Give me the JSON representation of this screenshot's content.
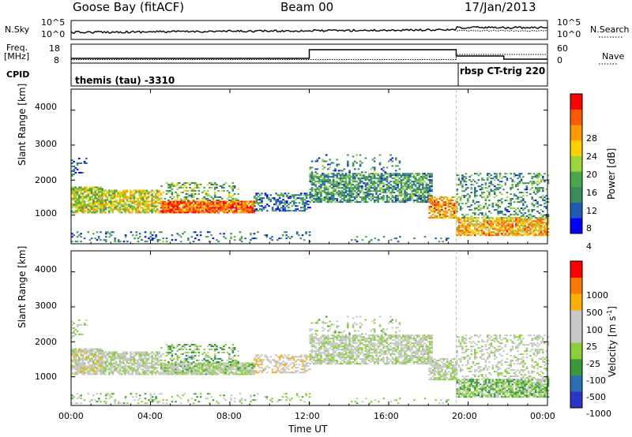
{
  "header": {
    "radar": "Goose Bay (fitACF)",
    "beam": "Beam 00",
    "date": "17/Jan/2013"
  },
  "strips": {
    "nsky": {
      "label": "N.Sky",
      "ticks": [
        "10^5",
        "10^0"
      ]
    },
    "nsearch": {
      "label": "N.Search",
      "ticks": [
        "10^5",
        "10^0"
      ]
    },
    "freq": {
      "label_line1": "Freq.",
      "label_line2": "[MHz]",
      "ticks": [
        "18",
        "8"
      ]
    },
    "nave": {
      "label": "Nave",
      "ticks": [
        "60",
        "0"
      ]
    },
    "cpid": {
      "label": "CPID",
      "segments": [
        "themis (tau) -3310",
        "rbsp CT-trig 220"
      ]
    }
  },
  "colors": {
    "power": [
      "#0000ff",
      "#1e5bb4",
      "#3a8c5c",
      "#4aa84a",
      "#9ad63a",
      "#ffd000",
      "#ff9a00",
      "#ff5a00",
      "#ff0000"
    ],
    "velocity": [
      "#2a36c8",
      "#2a6fb0",
      "#3a9a3a",
      "#8ad03a",
      "#c8c8c8",
      "#c8c8c8",
      "#ffb000",
      "#ff7a00",
      "#ff0000"
    ]
  },
  "chart_data": [
    {
      "type": "heatmap",
      "title": "",
      "ylabel": "Slant Range [km]",
      "xlabel": "",
      "x_ticks": [
        "00:00",
        "04:00",
        "08:00",
        "12:00",
        "16:00",
        "20:00",
        "00:00"
      ],
      "y_ticks": [
        "1000",
        "2000",
        "3000",
        "4000"
      ],
      "ylim": [
        180,
        4600
      ],
      "xlim_hours": [
        0,
        24
      ],
      "colorbar": {
        "label": "Power [dB]",
        "ticks": [
          "28",
          "24",
          "20",
          "16",
          "12",
          "8",
          "4"
        ]
      },
      "cpid_change_hour": 19.4
    },
    {
      "type": "heatmap",
      "title": "",
      "ylabel": "Slant Range [km]",
      "xlabel": "Time UT",
      "x_ticks": [
        "00:00",
        "04:00",
        "08:00",
        "12:00",
        "16:00",
        "20:00",
        "00:00"
      ],
      "y_ticks": [
        "1000",
        "2000",
        "3000",
        "4000"
      ],
      "ylim": [
        180,
        4600
      ],
      "xlim_hours": [
        0,
        24
      ],
      "colorbar": {
        "label_main": "Velocity [m s",
        "label_sup": "-1",
        "label_end": "]",
        "ticks": [
          "1000",
          "500",
          "100",
          "25",
          "-25",
          "-100",
          "-500",
          "-1000"
        ]
      },
      "cpid_change_hour": 19.4
    }
  ]
}
